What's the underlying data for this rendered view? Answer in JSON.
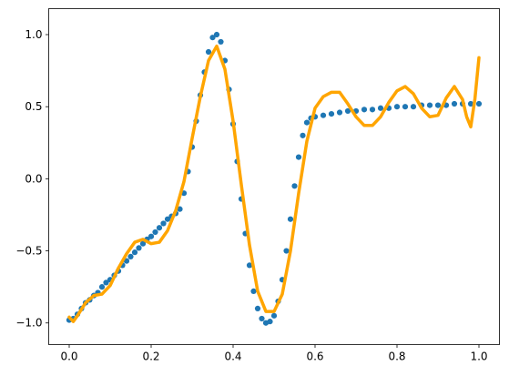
{
  "chart_data": {
    "type": "scatter",
    "title": "",
    "xlabel": "",
    "ylabel": "",
    "xlim": [
      -0.05,
      1.05
    ],
    "ylim": [
      -1.15,
      1.18
    ],
    "xticks": [
      0.0,
      0.2,
      0.4,
      0.6,
      0.8,
      1.0
    ],
    "xtick_labels": [
      "0.0",
      "0.2",
      "0.4",
      "0.6",
      "0.8",
      "1.0"
    ],
    "yticks": [
      -1.0,
      -0.5,
      0.0,
      0.5,
      1.0
    ],
    "ytick_labels": [
      "−1.0",
      "−0.5",
      "0.0",
      "0.5",
      "1.0"
    ],
    "grid": false,
    "legend": "none",
    "series": [
      {
        "kind": "scatter",
        "color": "#1f77b4",
        "points": [
          [
            0.0,
            -0.98
          ],
          [
            0.01,
            -0.97
          ],
          [
            0.02,
            -0.94
          ],
          [
            0.03,
            -0.9
          ],
          [
            0.04,
            -0.86
          ],
          [
            0.05,
            -0.84
          ],
          [
            0.06,
            -0.81
          ],
          [
            0.07,
            -0.79
          ],
          [
            0.08,
            -0.75
          ],
          [
            0.09,
            -0.72
          ],
          [
            0.1,
            -0.7
          ],
          [
            0.11,
            -0.67
          ],
          [
            0.12,
            -0.64
          ],
          [
            0.13,
            -0.6
          ],
          [
            0.14,
            -0.57
          ],
          [
            0.15,
            -0.54
          ],
          [
            0.16,
            -0.51
          ],
          [
            0.17,
            -0.48
          ],
          [
            0.18,
            -0.45
          ],
          [
            0.19,
            -0.42
          ],
          [
            0.2,
            -0.4
          ],
          [
            0.21,
            -0.37
          ],
          [
            0.22,
            -0.34
          ],
          [
            0.23,
            -0.31
          ],
          [
            0.24,
            -0.28
          ],
          [
            0.25,
            -0.26
          ],
          [
            0.26,
            -0.24
          ],
          [
            0.27,
            -0.21
          ],
          [
            0.28,
            -0.1
          ],
          [
            0.29,
            0.05
          ],
          [
            0.3,
            0.22
          ],
          [
            0.31,
            0.4
          ],
          [
            0.32,
            0.58
          ],
          [
            0.33,
            0.74
          ],
          [
            0.34,
            0.88
          ],
          [
            0.35,
            0.98
          ],
          [
            0.36,
            1.0
          ],
          [
            0.37,
            0.95
          ],
          [
            0.38,
            0.82
          ],
          [
            0.39,
            0.62
          ],
          [
            0.4,
            0.38
          ],
          [
            0.41,
            0.12
          ],
          [
            0.42,
            -0.14
          ],
          [
            0.43,
            -0.38
          ],
          [
            0.44,
            -0.6
          ],
          [
            0.45,
            -0.78
          ],
          [
            0.46,
            -0.9
          ],
          [
            0.47,
            -0.97
          ],
          [
            0.48,
            -1.0
          ],
          [
            0.49,
            -0.99
          ],
          [
            0.5,
            -0.95
          ],
          [
            0.51,
            -0.85
          ],
          [
            0.52,
            -0.7
          ],
          [
            0.53,
            -0.5
          ],
          [
            0.54,
            -0.28
          ],
          [
            0.55,
            -0.05
          ],
          [
            0.56,
            0.15
          ],
          [
            0.57,
            0.3
          ],
          [
            0.58,
            0.39
          ],
          [
            0.59,
            0.42
          ],
          [
            0.6,
            0.43
          ],
          [
            0.62,
            0.44
          ],
          [
            0.64,
            0.45
          ],
          [
            0.66,
            0.46
          ],
          [
            0.68,
            0.47
          ],
          [
            0.7,
            0.47
          ],
          [
            0.72,
            0.48
          ],
          [
            0.74,
            0.48
          ],
          [
            0.76,
            0.49
          ],
          [
            0.78,
            0.49
          ],
          [
            0.8,
            0.5
          ],
          [
            0.82,
            0.5
          ],
          [
            0.84,
            0.5
          ],
          [
            0.86,
            0.51
          ],
          [
            0.88,
            0.51
          ],
          [
            0.9,
            0.51
          ],
          [
            0.92,
            0.51
          ],
          [
            0.94,
            0.52
          ],
          [
            0.96,
            0.52
          ],
          [
            0.98,
            0.52
          ],
          [
            1.0,
            0.52
          ]
        ]
      },
      {
        "kind": "line",
        "color": "#ffa500",
        "points": [
          [
            0.0,
            -0.96
          ],
          [
            0.01,
            -0.99
          ],
          [
            0.02,
            -0.95
          ],
          [
            0.04,
            -0.86
          ],
          [
            0.06,
            -0.81
          ],
          [
            0.08,
            -0.8
          ],
          [
            0.1,
            -0.74
          ],
          [
            0.12,
            -0.62
          ],
          [
            0.14,
            -0.52
          ],
          [
            0.16,
            -0.44
          ],
          [
            0.18,
            -0.42
          ],
          [
            0.2,
            -0.45
          ],
          [
            0.22,
            -0.44
          ],
          [
            0.24,
            -0.36
          ],
          [
            0.26,
            -0.22
          ],
          [
            0.28,
            -0.02
          ],
          [
            0.3,
            0.28
          ],
          [
            0.32,
            0.57
          ],
          [
            0.34,
            0.82
          ],
          [
            0.36,
            0.92
          ],
          [
            0.38,
            0.76
          ],
          [
            0.4,
            0.4
          ],
          [
            0.42,
            -0.04
          ],
          [
            0.44,
            -0.46
          ],
          [
            0.46,
            -0.78
          ],
          [
            0.48,
            -0.92
          ],
          [
            0.5,
            -0.92
          ],
          [
            0.52,
            -0.8
          ],
          [
            0.54,
            -0.5
          ],
          [
            0.56,
            -0.1
          ],
          [
            0.58,
            0.26
          ],
          [
            0.6,
            0.49
          ],
          [
            0.62,
            0.57
          ],
          [
            0.64,
            0.6
          ],
          [
            0.66,
            0.6
          ],
          [
            0.68,
            0.52
          ],
          [
            0.7,
            0.43
          ],
          [
            0.72,
            0.37
          ],
          [
            0.74,
            0.37
          ],
          [
            0.76,
            0.43
          ],
          [
            0.78,
            0.53
          ],
          [
            0.8,
            0.61
          ],
          [
            0.82,
            0.64
          ],
          [
            0.84,
            0.59
          ],
          [
            0.86,
            0.49
          ],
          [
            0.88,
            0.43
          ],
          [
            0.9,
            0.44
          ],
          [
            0.92,
            0.56
          ],
          [
            0.94,
            0.64
          ],
          [
            0.96,
            0.55
          ],
          [
            0.97,
            0.43
          ],
          [
            0.98,
            0.36
          ],
          [
            0.99,
            0.55
          ],
          [
            1.0,
            0.84
          ]
        ]
      }
    ]
  }
}
